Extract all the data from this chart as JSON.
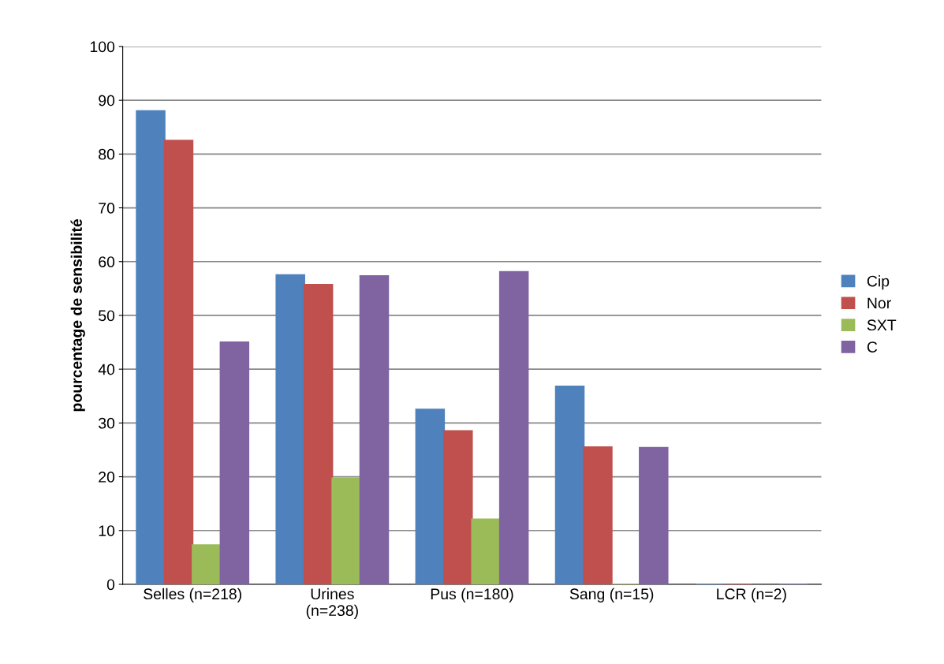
{
  "chart_data": {
    "type": "bar",
    "ylabel": "pourcentage de sensibilité",
    "categories": [
      "Selles (n=218)",
      "Urines\n(n=238)",
      "Pus (n=180)",
      "Sang (n=15)",
      "LCR (n=2)"
    ],
    "series": [
      {
        "name": "Cip",
        "color": "#4f81bd",
        "values": [
          88,
          57.5,
          32.5,
          36.8,
          0
        ]
      },
      {
        "name": "Nor",
        "color": "#c0504d",
        "values": [
          82.5,
          55.7,
          28.5,
          25.5,
          0
        ]
      },
      {
        "name": "SXT",
        "color": "#9bbb59",
        "values": [
          7.3,
          19.7,
          12.1,
          0,
          null
        ]
      },
      {
        "name": "C",
        "color": "#8064a2",
        "values": [
          45,
          57.3,
          58.1,
          25.4,
          0
        ]
      }
    ],
    "ylim": [
      0,
      100
    ],
    "yticks": [
      0,
      10,
      20,
      30,
      40,
      50,
      60,
      70,
      80,
      90,
      100
    ],
    "grid": "y",
    "legend": "right"
  }
}
